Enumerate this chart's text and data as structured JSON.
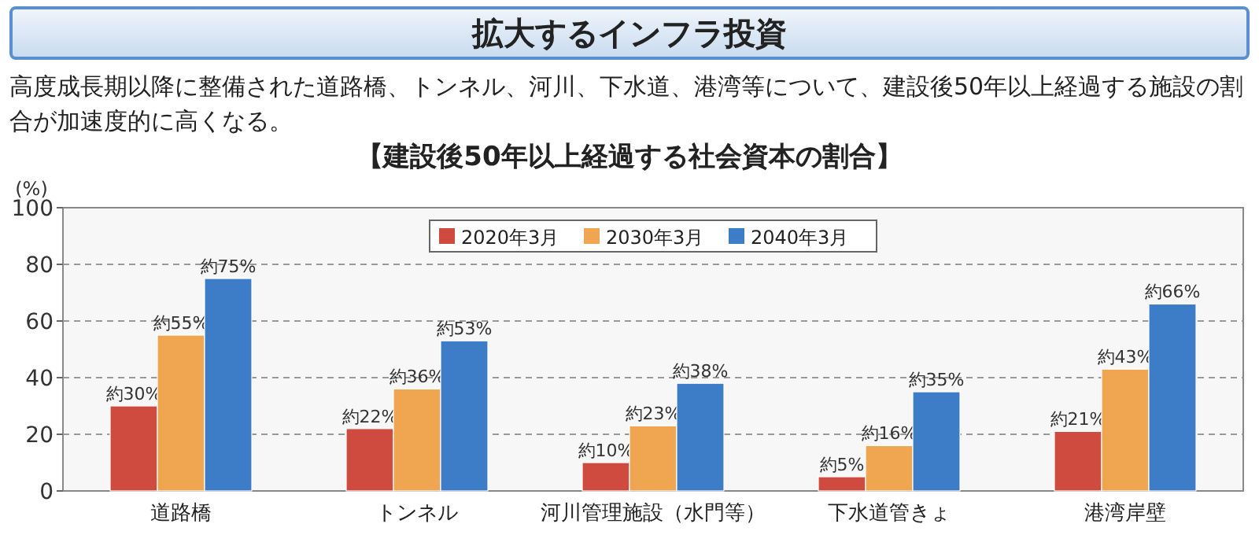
{
  "chart_data": {
    "type": "bar",
    "title": "拡大するインフラ投資",
    "subtitle": "高度成長期以降に整備された道路橋、トンネル、河川、下水道、港湾等について、建設後50年以上経過する施設の割合が加速度的に高くなる。",
    "annotations": [
      "【建設後50年以上経過する社会資本の割合】"
    ],
    "ylabel": "(%)",
    "categories": [
      "道路橋",
      "トンネル",
      "河川管理施設（水門等）",
      "下水道管きょ",
      "港湾岸壁"
    ],
    "series": [
      {
        "name": "2020年3月",
        "color": "#cf4a3f",
        "values": [
          30,
          22,
          10,
          5,
          21
        ],
        "value_labels": [
          "約30%",
          "約22%",
          "約10%",
          "約5%",
          "約21%"
        ]
      },
      {
        "name": "2030年3月",
        "color": "#f0a550",
        "values": [
          55,
          36,
          23,
          16,
          43
        ],
        "value_labels": [
          "約55%",
          "約36%",
          "約23%",
          "約16%",
          "約43%"
        ]
      },
      {
        "name": "2040年3月",
        "color": "#3d7cc6",
        "values": [
          75,
          53,
          38,
          35,
          66
        ],
        "value_labels": [
          "約75%",
          "約53%",
          "約38%",
          "約35%",
          "約66%"
        ]
      }
    ],
    "ylim": [
      0,
      100
    ],
    "yticks": [
      0,
      20,
      40,
      60,
      80,
      100
    ],
    "grid": "y",
    "legend": "top"
  }
}
